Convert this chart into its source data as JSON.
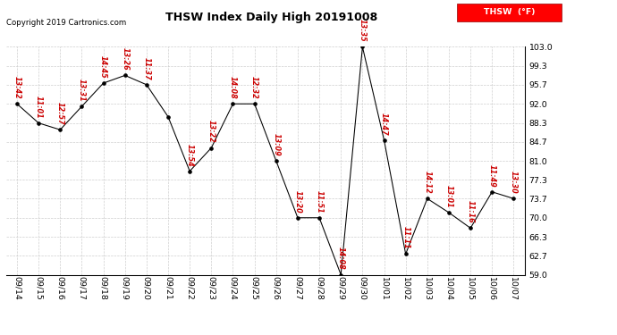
{
  "title": "THSW Index Daily High 20191008",
  "copyright": "Copyright 2019 Cartronics.com",
  "legend_label": "THSW  (°F)",
  "line_color": "#cc0000",
  "point_color": "#000000",
  "background_color": "#ffffff",
  "grid_color": "#cccccc",
  "dates": [
    "09/14",
    "09/15",
    "09/16",
    "09/17",
    "09/18",
    "09/19",
    "09/20",
    "09/21",
    "09/22",
    "09/23",
    "09/24",
    "09/25",
    "09/26",
    "09/27",
    "09/28",
    "09/29",
    "09/30",
    "10/01",
    "10/02",
    "10/03",
    "10/04",
    "10/05",
    "10/06",
    "10/07"
  ],
  "points": [
    [
      0,
      92.0,
      "13:42"
    ],
    [
      1,
      88.3,
      "11:01"
    ],
    [
      2,
      87.0,
      "12:57"
    ],
    [
      3,
      91.5,
      "13:31"
    ],
    [
      4,
      96.0,
      "14:45"
    ],
    [
      5,
      97.5,
      "13:26"
    ],
    [
      6,
      95.7,
      "11:37"
    ],
    [
      7,
      89.5,
      null
    ],
    [
      8,
      79.0,
      "13:54"
    ],
    [
      9,
      83.5,
      "13:22"
    ],
    [
      10,
      92.0,
      "14:08"
    ],
    [
      11,
      92.0,
      "12:32"
    ],
    [
      12,
      81.0,
      "13:09"
    ],
    [
      13,
      70.0,
      "13:20"
    ],
    [
      14,
      70.0,
      "11:51"
    ],
    [
      15,
      59.0,
      "14:08"
    ],
    [
      16,
      103.0,
      "13:35"
    ],
    [
      17,
      85.0,
      "14:47"
    ],
    [
      18,
      63.0,
      "11:11"
    ],
    [
      19,
      73.7,
      "14:12"
    ],
    [
      20,
      71.0,
      "13:01"
    ],
    [
      21,
      68.0,
      "11:16"
    ],
    [
      22,
      75.0,
      "11:49"
    ],
    [
      23,
      73.7,
      "13:30"
    ]
  ],
  "ylim": [
    59.0,
    103.0
  ],
  "yticks": [
    59.0,
    62.7,
    66.3,
    70.0,
    73.7,
    77.3,
    81.0,
    84.7,
    88.3,
    92.0,
    95.7,
    99.3,
    103.0
  ]
}
